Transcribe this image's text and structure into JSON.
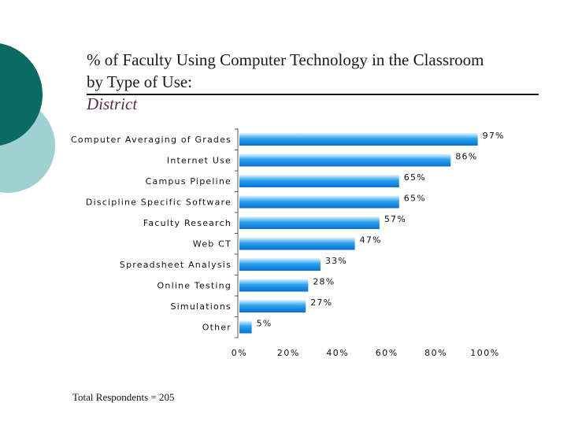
{
  "slide": {
    "title_line1": "% of Faculty Using Computer Technology in the Classroom",
    "title_line2": "by Type of Use:",
    "subtitle": "District",
    "footnote": "Total Respondents = 205"
  },
  "colors": {
    "bar_light": "#e8f4ff",
    "bar_mid": "#2aa3f0",
    "bar_dark": "#0a6fd0",
    "deco_dark": "#0a6b63",
    "deco_light": "#9fd1d1",
    "title_rule": "#1a1a1a"
  },
  "chart_data": {
    "type": "bar",
    "orientation": "horizontal",
    "categories": [
      "Computer Averaging of Grades",
      "Internet Use",
      "Campus Pipeline",
      "Discipline Specific Software",
      "Faculty Research",
      "Web CT",
      "Spreadsheet Analysis",
      "Online Testing",
      "Simulations",
      "Other"
    ],
    "values": [
      97,
      86,
      65,
      65,
      57,
      47,
      33,
      28,
      27,
      5
    ],
    "value_labels": [
      "97%",
      "86%",
      "65%",
      "65%",
      "57%",
      "47%",
      "33%",
      "28%",
      "27%",
      "5%"
    ],
    "xlim": [
      0,
      100
    ],
    "x_ticks": [
      "0%",
      "20%",
      "40%",
      "60%",
      "80%",
      "100%"
    ],
    "grid": false,
    "legend": "none"
  }
}
